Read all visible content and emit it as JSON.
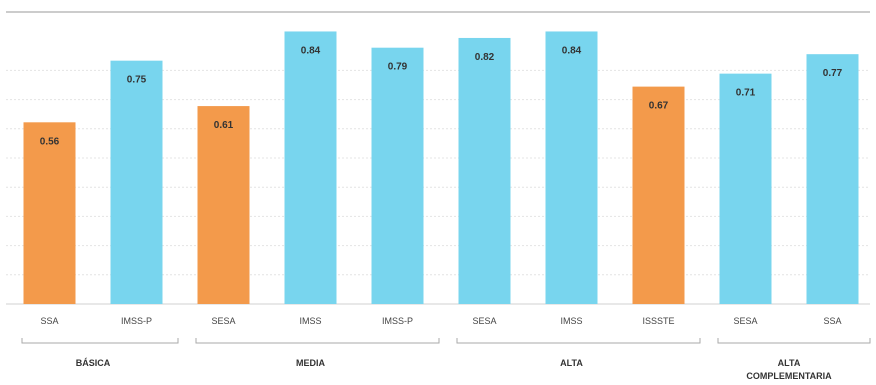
{
  "chart_data": {
    "type": "bar",
    "categories": [
      "SSA",
      "IMSS-P",
      "SESA",
      "IMSS",
      "IMSS-P",
      "SESA",
      "IMSS",
      "ISSSTE",
      "SESA",
      "SSA"
    ],
    "values": [
      0.56,
      0.75,
      0.61,
      0.84,
      0.79,
      0.82,
      0.84,
      0.67,
      0.71,
      0.77
    ],
    "value_labels": [
      "0.56",
      "0.75",
      "0.61",
      "0.84",
      "0.79",
      "0.82",
      "0.84",
      "0.67",
      "0.71",
      "0.77"
    ],
    "bar_colors": [
      "#f39a4b",
      "#78d5ee",
      "#f39a4b",
      "#78d5ee",
      "#78d5ee",
      "#78d5ee",
      "#78d5ee",
      "#f39a4b",
      "#78d5ee",
      "#78d5ee"
    ],
    "groups": [
      {
        "label": "BÁSICA",
        "label_lines": [
          "BÁSICA"
        ],
        "start": 0,
        "end": 1
      },
      {
        "label": "MEDIA",
        "label_lines": [
          "MEDIA"
        ],
        "start": 2,
        "end": 4
      },
      {
        "label": "ALTA",
        "label_lines": [
          "ALTA"
        ],
        "start": 5,
        "end": 7
      },
      {
        "label": "ALTA COMPLEMENTARIA",
        "label_lines": [
          "ALTA",
          "COMPLEMENTARIA"
        ],
        "start": 8,
        "end": 9
      }
    ],
    "ylim": [
      0,
      0.9
    ],
    "grid": true,
    "title": "",
    "xlabel": "",
    "ylabel": ""
  }
}
